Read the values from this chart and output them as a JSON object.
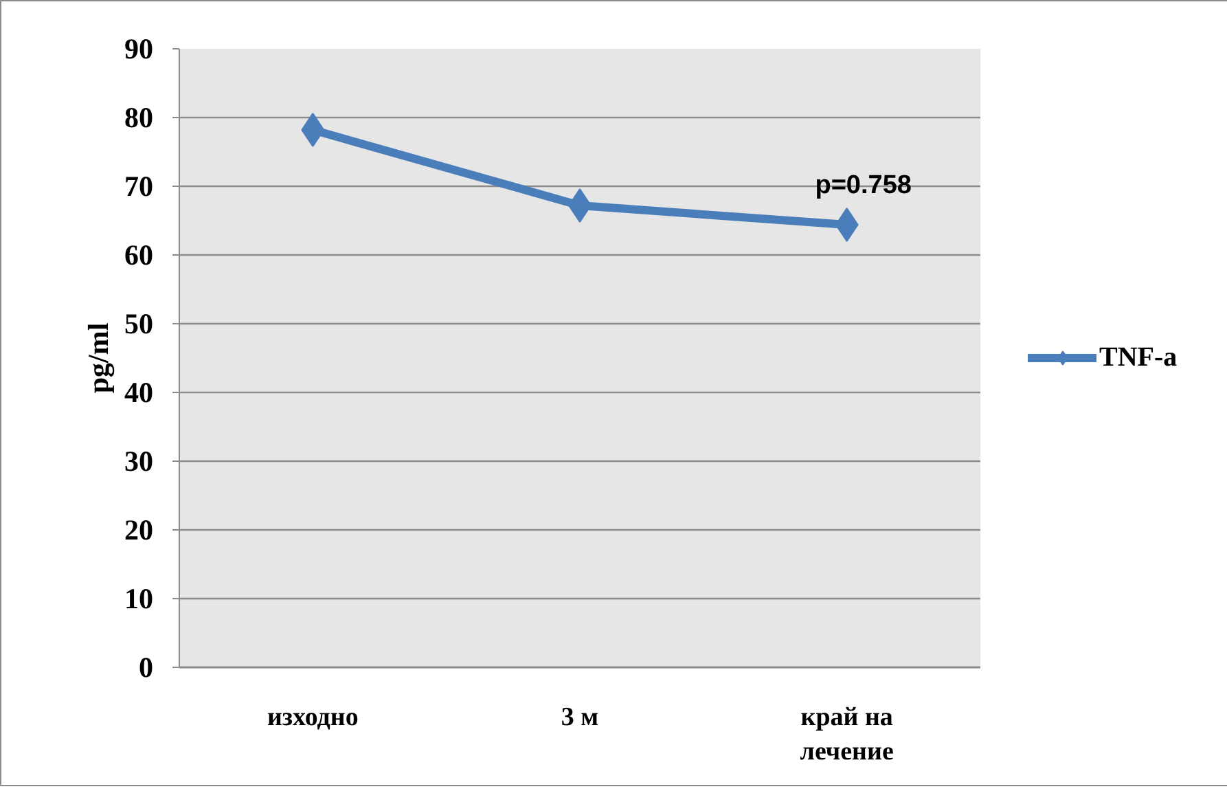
{
  "chart_data": {
    "type": "line",
    "ylabel": "pg/ml",
    "categories": [
      "изходно",
      "3 м",
      "край на\nлечение"
    ],
    "series": [
      {
        "name": "TNF-a",
        "color": "#4a7ebb",
        "values": [
          78.2,
          67.2,
          64.4
        ]
      }
    ],
    "ylim": [
      0,
      90
    ],
    "yticks": [
      0,
      10,
      20,
      30,
      40,
      50,
      60,
      70,
      80,
      90
    ],
    "grid": "y",
    "legend": "right",
    "marker": "diamond",
    "line_style": "solid",
    "annotations": [
      {
        "text": "p=0.758",
        "x": "край на\nлечение",
        "y": 64.4
      }
    ]
  }
}
